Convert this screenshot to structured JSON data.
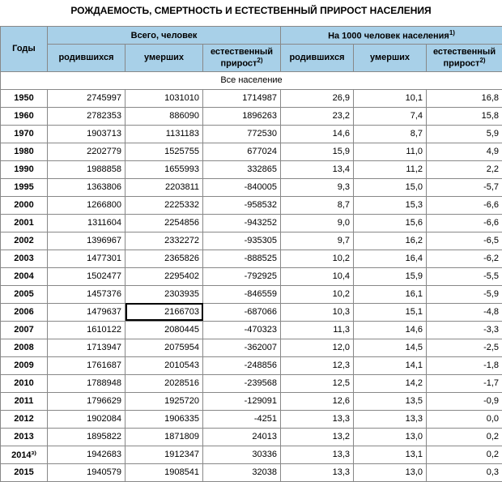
{
  "title": "РОЖДАЕМОСТЬ, СМЕРТНОСТЬ И ЕСТЕСТВЕННЫЙ ПРИРОСТ НАСЕЛЕНИЯ",
  "table": {
    "header": {
      "years": "Годы",
      "total_header": "Всего, человек",
      "per1000_header": "На 1000 человек населения",
      "per1000_sup": "1)",
      "born": "родившихся",
      "died": "умерших",
      "natural": "естественный прирост",
      "natural_sup": "2)"
    },
    "section_label": "Все население",
    "selected_cell": {
      "row": 13,
      "col": 2
    },
    "columns": [
      "year",
      "born",
      "died",
      "natural",
      "born_rate",
      "died_rate",
      "natural_rate"
    ],
    "rows": [
      [
        "1950",
        "2745997",
        "1031010",
        "1714987",
        "26,9",
        "10,1",
        "16,8"
      ],
      [
        "1960",
        "2782353",
        "886090",
        "1896263",
        "23,2",
        "7,4",
        "15,8"
      ],
      [
        "1970",
        "1903713",
        "1131183",
        "772530",
        "14,6",
        "8,7",
        "5,9"
      ],
      [
        "1980",
        "2202779",
        "1525755",
        "677024",
        "15,9",
        "11,0",
        "4,9"
      ],
      [
        "1990",
        "1988858",
        "1655993",
        "332865",
        "13,4",
        "11,2",
        "2,2"
      ],
      [
        "1995",
        "1363806",
        "2203811",
        "-840005",
        "9,3",
        "15,0",
        "-5,7"
      ],
      [
        "2000",
        "1266800",
        "2225332",
        "-958532",
        "8,7",
        "15,3",
        "-6,6"
      ],
      [
        "2001",
        "1311604",
        "2254856",
        "-943252",
        "9,0",
        "15,6",
        "-6,6"
      ],
      [
        "2002",
        "1396967",
        "2332272",
        "-935305",
        "9,7",
        "16,2",
        "-6,5"
      ],
      [
        "2003",
        "1477301",
        "2365826",
        "-888525",
        "10,2",
        "16,4",
        "-6,2"
      ],
      [
        "2004",
        "1502477",
        "2295402",
        "-792925",
        "10,4",
        "15,9",
        "-5,5"
      ],
      [
        "2005",
        "1457376",
        "2303935",
        "-846559",
        "10,2",
        "16,1",
        "-5,9"
      ],
      [
        "2006",
        "1479637",
        "2166703",
        "-687066",
        "10,3",
        "15,1",
        "-4,8"
      ],
      [
        "2007",
        "1610122",
        "2080445",
        "-470323",
        "11,3",
        "14,6",
        "-3,3"
      ],
      [
        "2008",
        "1713947",
        "2075954",
        "-362007",
        "12,0",
        "14,5",
        "-2,5"
      ],
      [
        "2009",
        "1761687",
        "2010543",
        "-248856",
        "12,3",
        "14,1",
        "-1,8"
      ],
      [
        "2010",
        "1788948",
        "2028516",
        "-239568",
        "12,5",
        "14,2",
        "-1,7"
      ],
      [
        "2011",
        "1796629",
        "1925720",
        "-129091",
        "12,6",
        "13,5",
        "-0,9"
      ],
      [
        "2012",
        "1902084",
        "1906335",
        "-4251",
        "13,3",
        "13,3",
        "0,0"
      ],
      [
        "2013",
        "1895822",
        "1871809",
        "24013",
        "13,2",
        "13,0",
        "0,2"
      ],
      [
        "2014³⁾",
        "1942683",
        "1912347",
        "30336",
        "13,3",
        "13,1",
        "0,2"
      ],
      [
        "2015",
        "1940579",
        "1908541",
        "32038",
        "13,3",
        "13,0",
        "0,3"
      ]
    ]
  },
  "styling": {
    "header_bg": "#a8d0e8",
    "border_color": "#888",
    "font_family": "Arial",
    "title_fontsize": 12,
    "body_fontsize": 11
  }
}
